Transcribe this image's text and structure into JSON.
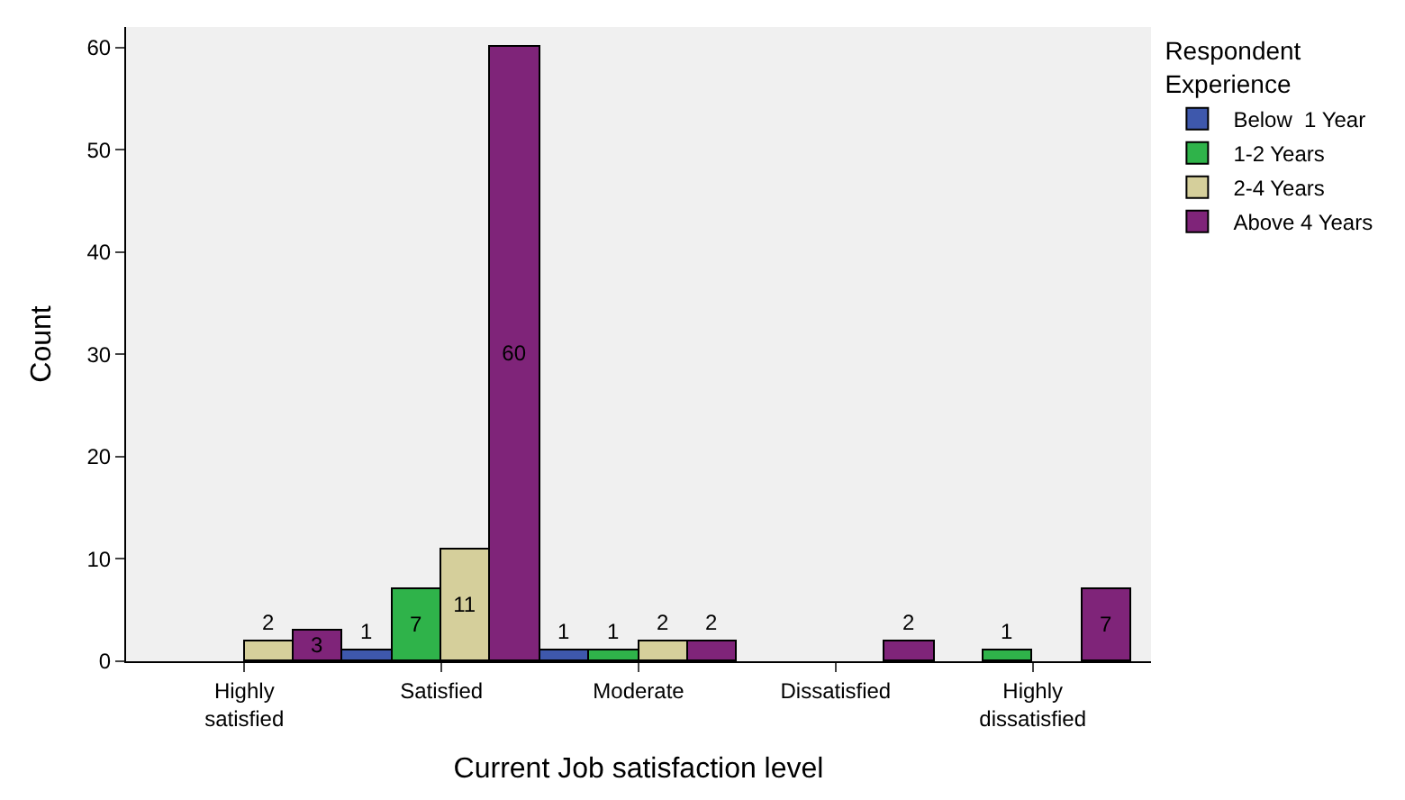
{
  "chart_data": {
    "type": "bar",
    "xlabel": "Current Job satisfaction level",
    "ylabel": "Count",
    "legend_title": "Respondent Experience",
    "categories": [
      "Highly satisfied",
      "Satisfied",
      "Moderate",
      "Dissatisfied",
      "Highly dissatisfied"
    ],
    "series": [
      {
        "name": "Below  1 Year",
        "color": "#3e58ac",
        "values": [
          null,
          1,
          1,
          null,
          null
        ]
      },
      {
        "name": "1-2 Years",
        "color": "#2fb34a",
        "values": [
          null,
          7,
          1,
          null,
          1
        ]
      },
      {
        "name": "2-4 Years",
        "color": "#d5cf9b",
        "values": [
          2,
          11,
          2,
          null,
          null
        ]
      },
      {
        "name": "Above 4 Years",
        "color": "#7f2479",
        "values": [
          3,
          60,
          2,
          2,
          7
        ]
      }
    ],
    "ylim": [
      0,
      62
    ],
    "yticks": [
      0,
      10,
      20,
      30,
      40,
      50,
      60
    ],
    "grid": false,
    "legend": "top right",
    "data_labels": true
  }
}
